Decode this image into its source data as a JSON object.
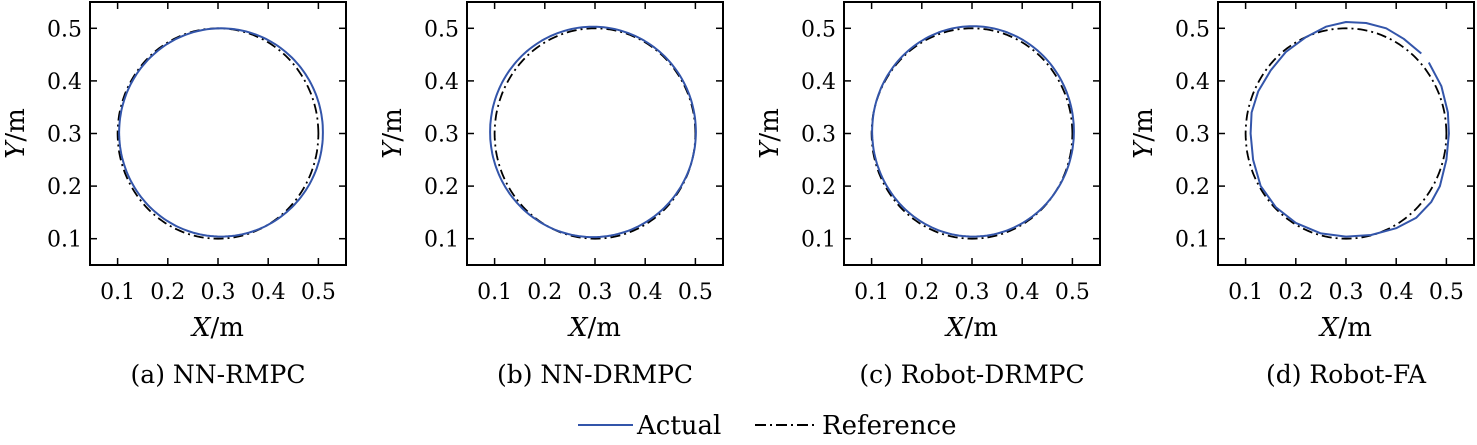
{
  "chart_data": [
    {
      "type": "line",
      "caption": "(a) NN-RMPC",
      "xlabel_var": "X",
      "xlabel_unit": "/m",
      "ylabel_var": "Y",
      "ylabel_unit": "/m",
      "xlim": [
        0.045,
        0.555
      ],
      "ylim": [
        0.05,
        0.55
      ],
      "xticks": [
        "0.1",
        "0.2",
        "0.3",
        "0.4",
        "0.5"
      ],
      "yticks": [
        "0.1",
        "0.2",
        "0.3",
        "0.4",
        "0.5"
      ],
      "reference": {
        "center": [
          0.3,
          0.3
        ],
        "radius": 0.2
      },
      "actual": {
        "center": [
          0.306,
          0.302
        ],
        "rx": 0.203,
        "ry": 0.198,
        "arc_start_deg": 0,
        "arc_end_deg": 360
      }
    },
    {
      "type": "line",
      "caption": "(b) NN-DRMPC",
      "xlabel_var": "X",
      "xlabel_unit": "/m",
      "ylabel_var": "Y",
      "ylabel_unit": "/m",
      "xlim": [
        0.045,
        0.555
      ],
      "ylim": [
        0.05,
        0.55
      ],
      "xticks": [
        "0.1",
        "0.2",
        "0.3",
        "0.4",
        "0.5"
      ],
      "yticks": [
        "0.1",
        "0.2",
        "0.3",
        "0.4",
        "0.5"
      ],
      "reference": {
        "center": [
          0.3,
          0.3
        ],
        "radius": 0.2
      },
      "actual": {
        "center": [
          0.296,
          0.303
        ],
        "rx": 0.205,
        "ry": 0.2,
        "arc_start_deg": 0,
        "arc_end_deg": 360
      }
    },
    {
      "type": "line",
      "caption": "(c) Robot-DRMPC",
      "xlabel_var": "X",
      "xlabel_unit": "/m",
      "ylabel_var": "Y",
      "ylabel_unit": "/m",
      "xlim": [
        0.045,
        0.555
      ],
      "ylim": [
        0.05,
        0.55
      ],
      "xticks": [
        "0.1",
        "0.2",
        "0.3",
        "0.4",
        "0.5"
      ],
      "yticks": [
        "0.1",
        "0.2",
        "0.3",
        "0.4",
        "0.5"
      ],
      "reference": {
        "center": [
          0.3,
          0.3
        ],
        "radius": 0.2
      },
      "actual": {
        "center": [
          0.302,
          0.304
        ],
        "rx": 0.201,
        "ry": 0.2,
        "arc_start_deg": 0,
        "arc_end_deg": 360
      }
    },
    {
      "type": "line",
      "caption": "(d) Robot-FA",
      "xlabel_var": "X",
      "xlabel_unit": "/m",
      "ylabel_var": "Y",
      "ylabel_unit": "/m",
      "xlim": [
        0.045,
        0.555
      ],
      "ylim": [
        0.05,
        0.55
      ],
      "xticks": [
        "0.1",
        "0.2",
        "0.3",
        "0.4",
        "0.5"
      ],
      "yticks": [
        "0.1",
        "0.2",
        "0.3",
        "0.4",
        "0.5"
      ],
      "reference": {
        "center": [
          0.3,
          0.3
        ],
        "radius": 0.2
      },
      "actual_points": [
        [
          0.465,
          0.435
        ],
        [
          0.49,
          0.39
        ],
        [
          0.503,
          0.34
        ],
        [
          0.505,
          0.3
        ],
        [
          0.5,
          0.25
        ],
        [
          0.487,
          0.2
        ],
        [
          0.47,
          0.17
        ],
        [
          0.44,
          0.14
        ],
        [
          0.4,
          0.12
        ],
        [
          0.35,
          0.107
        ],
        [
          0.3,
          0.104
        ],
        [
          0.25,
          0.11
        ],
        [
          0.2,
          0.13
        ],
        [
          0.16,
          0.16
        ],
        [
          0.13,
          0.2
        ],
        [
          0.115,
          0.25
        ],
        [
          0.11,
          0.3
        ],
        [
          0.112,
          0.34
        ],
        [
          0.125,
          0.38
        ],
        [
          0.15,
          0.42
        ],
        [
          0.18,
          0.455
        ],
        [
          0.22,
          0.483
        ],
        [
          0.26,
          0.503
        ],
        [
          0.3,
          0.512
        ],
        [
          0.34,
          0.51
        ],
        [
          0.38,
          0.5
        ],
        [
          0.415,
          0.48
        ],
        [
          0.45,
          0.452
        ]
      ]
    }
  ],
  "legend": {
    "items": [
      {
        "label": "Actual",
        "color": "#3355aa",
        "style": "solid"
      },
      {
        "label": "Reference",
        "color": "#000000",
        "style": "dashdot"
      }
    ],
    "placement": "bottom-center"
  },
  "colors": {
    "actual": "#3355aa",
    "reference": "#000000"
  }
}
